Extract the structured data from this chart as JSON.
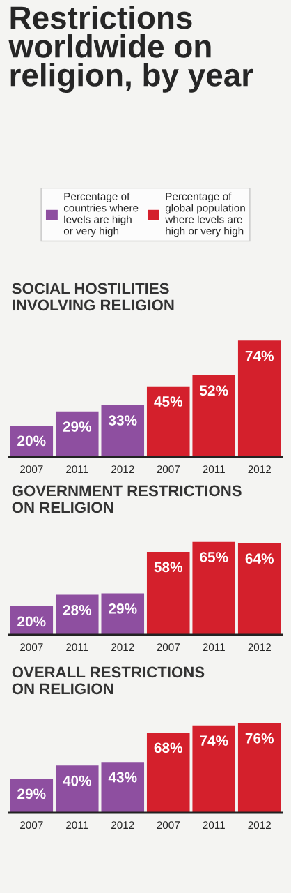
{
  "chart_data": [
    {
      "type": "bar",
      "title": "Restrictions\nworldwide on\nreligion, by year",
      "subtitle": "SOCIAL HOSTILITIES\nINVOLVING RELIGION",
      "categories": [
        "2007",
        "2011",
        "2012",
        "2007",
        "2011",
        "2012"
      ],
      "legend": "top",
      "tick_labels": "x",
      "series": [
        {
          "name": "Percentage of\ncountries where\nlevels are high\nor very high",
          "color": "#8e4fa0",
          "values": [
            20,
            29,
            33,
            null,
            null,
            null
          ],
          "value_labels": [
            "20%",
            "29%",
            "33%",
            null,
            null,
            null
          ]
        },
        {
          "name": "Percentage of\nglobal population\nwhere levels are\nhigh or very high",
          "color": "#d4202c",
          "values": [
            null,
            null,
            null,
            45,
            52,
            74
          ],
          "value_labels": [
            null,
            null,
            null,
            "45%",
            "52%",
            "74%"
          ]
        }
      ]
    },
    {
      "type": "bar",
      "title": "GOVERNMENT RESTRICTIONS\nON RELIGION",
      "categories": [
        "2007",
        "2011",
        "2012",
        "2007",
        "2011",
        "2012"
      ],
      "tick_labels": "x",
      "series": [
        {
          "color": "#8e4fa0",
          "values": [
            20,
            28,
            29,
            null,
            null,
            null
          ],
          "value_labels": [
            "20%",
            "28%",
            "29%",
            null,
            null,
            null
          ]
        },
        {
          "color": "#d4202c",
          "values": [
            null,
            null,
            null,
            58,
            65,
            64
          ],
          "value_labels": [
            null,
            null,
            null,
            "58%",
            "65%",
            "64%"
          ]
        }
      ]
    },
    {
      "type": "bar",
      "title": "OVERALL RESTRICTIONS\nON RELIGION",
      "categories": [
        "2007",
        "2011",
        "2012",
        "2007",
        "2011",
        "2012"
      ],
      "tick_labels": "x",
      "series": [
        {
          "color": "#8e4fa0",
          "values": [
            29,
            40,
            43,
            null,
            null,
            null
          ],
          "value_labels": [
            "29%",
            "40%",
            "43%",
            null,
            null,
            null
          ]
        },
        {
          "color": "#d4202c",
          "values": [
            null,
            null,
            null,
            68,
            74,
            76
          ],
          "value_labels": [
            null,
            null,
            null,
            "68%",
            "74%",
            "76%"
          ]
        }
      ]
    }
  ]
}
